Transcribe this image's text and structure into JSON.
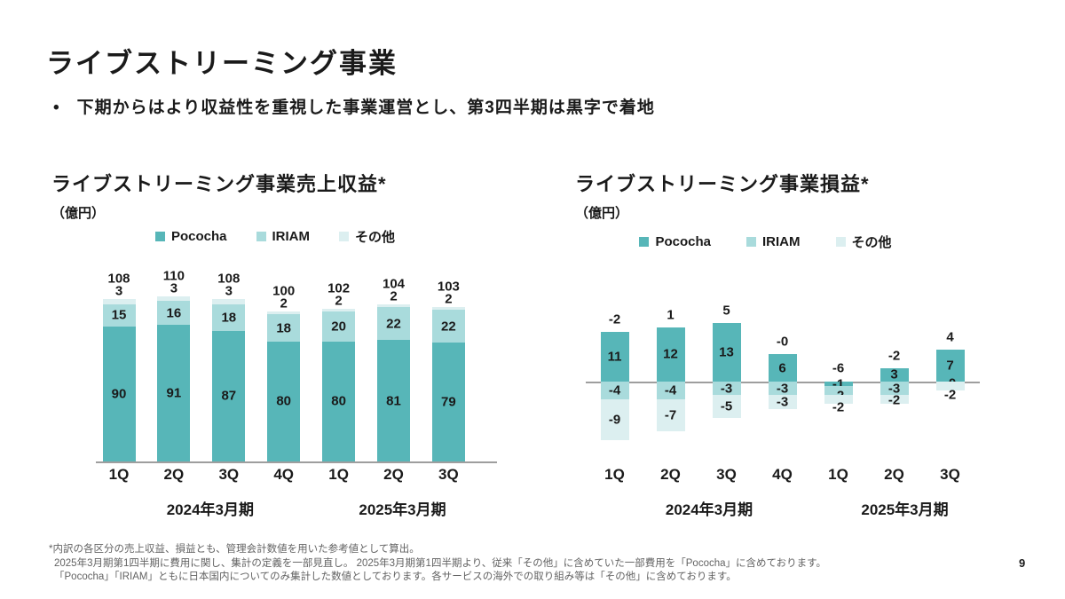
{
  "slide": {
    "title": "ライブストリーミング事業",
    "bullet_marker": "•",
    "bullet": "下期からはより収益性を重視した事業運営とし、第3四半期は黒字で着地",
    "page_number": "9",
    "footnotes": [
      "*内訳の各区分の売上収益、損益とも、管理会計数値を用いた参考値として算出。",
      "2025年3月期第1四半期に費用に関し、集計の定義を一部見直し。 2025年3月期第1四半期より、従来「その他」に含めていた一部費用を「Pococha」に含めております。",
      "「Pococha」「IRIAM」ともに日本国内についてのみ集計した数値としております。各サービスの海外での取り組み等は「その他」に含めております。"
    ]
  },
  "colors": {
    "pococha": "#57B6B8",
    "iriam": "#A9DBDC",
    "sonota": "#DCEFF0",
    "axis": "#9E9E9E",
    "text": "#1A1A1A",
    "footnote": "#636363"
  },
  "chart_data": [
    {
      "type": "bar",
      "stacked": true,
      "title": "ライブストリーミング事業売上収益*",
      "unit": "（億円）",
      "legend": [
        "Pococha",
        "IRIAM",
        "その他"
      ],
      "legend_position": "top",
      "grid": false,
      "categories": [
        "1Q",
        "2Q",
        "3Q",
        "4Q",
        "1Q",
        "2Q",
        "3Q"
      ],
      "group_labels": [
        "2024年3月期",
        "2025年3月期"
      ],
      "group_spans": [
        [
          0,
          3
        ],
        [
          4,
          6
        ]
      ],
      "totals": [
        "108",
        "110",
        "108",
        "100",
        "102",
        "104",
        "103"
      ],
      "series": [
        {
          "name": "Pococha",
          "values": [
            90,
            91,
            87,
            80,
            80,
            81,
            79
          ],
          "labels": [
            "90",
            "91",
            "87",
            "80",
            "80",
            "81",
            "79"
          ]
        },
        {
          "name": "IRIAM",
          "values": [
            15,
            16,
            18,
            18,
            20,
            22,
            22
          ],
          "labels": [
            "15",
            "16",
            "18",
            "18",
            "20",
            "22",
            "22"
          ]
        },
        {
          "name": "その他",
          "values": [
            3,
            3,
            3,
            2,
            2,
            2,
            2
          ],
          "labels": [
            "3",
            "3",
            "3",
            "2",
            "2",
            "2",
            "2"
          ]
        }
      ],
      "ylim": [
        0,
        115
      ]
    },
    {
      "type": "bar",
      "stacked": true,
      "title": "ライブストリーミング事業損益*",
      "unit": "（億円）",
      "legend": [
        "Pococha",
        "IRIAM",
        "その他"
      ],
      "legend_position": "top",
      "grid": false,
      "categories": [
        "1Q",
        "2Q",
        "3Q",
        "4Q",
        "1Q",
        "2Q",
        "3Q"
      ],
      "group_labels": [
        "2024年3月期",
        "2025年3月期"
      ],
      "group_spans": [
        [
          0,
          3
        ],
        [
          4,
          6
        ]
      ],
      "totals": [
        "-2",
        "1",
        "5",
        "-0",
        "-6",
        "-2",
        "4"
      ],
      "series": [
        {
          "name": "Pococha",
          "values": [
            11,
            12,
            13,
            6,
            -1,
            3,
            7
          ],
          "labels": [
            "11",
            "12",
            "13",
            "6",
            "-1",
            "3",
            "7"
          ]
        },
        {
          "name": "IRIAM",
          "values": [
            -4,
            -4,
            -3,
            -3,
            -2,
            -3,
            0
          ],
          "labels": [
            "-4",
            "-4",
            "-3",
            "-3",
            "-2",
            "-3",
            "-0"
          ]
        },
        {
          "name": "その他",
          "values": [
            -9,
            -7,
            -5,
            -3,
            -2,
            -2,
            -2
          ],
          "labels": [
            "-9",
            "-7",
            "-5",
            "-3",
            "-2",
            "-2",
            "-2"
          ]
        }
      ],
      "ylim": [
        -14,
        14
      ]
    }
  ]
}
